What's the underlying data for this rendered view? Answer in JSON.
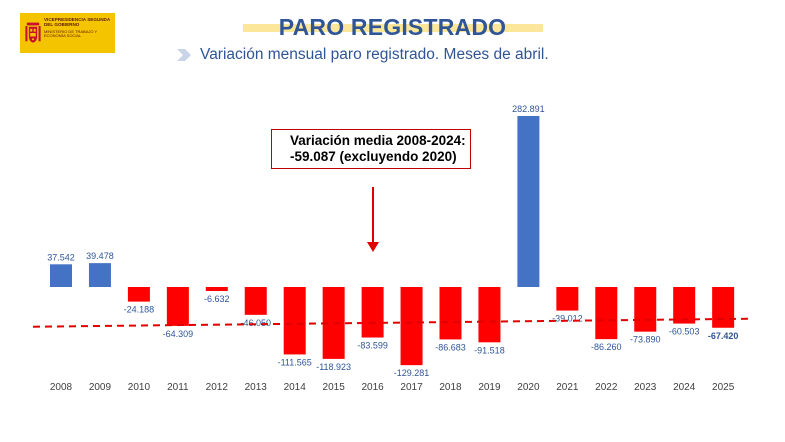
{
  "logo": {
    "line1": "VICEPRESIDENCIA SEGUNDA DEL GOBIERNO",
    "line2": "MINISTERIO DE TRABAJO Y ECONOMÍA SOCIAL"
  },
  "header": {
    "title": "PARO REGISTRADO",
    "subtitle": "Variación mensual paro registrado. Meses de abril."
  },
  "annotation": {
    "line1": "Variación media 2008-2024:",
    "line2": "-59.087 (excluyendo 2020)"
  },
  "colors": {
    "positive": "#4472c4",
    "negative": "#ff0000",
    "label": "#2f5597",
    "reference_line": "#e00000",
    "title": "#2f5597"
  },
  "chart_data": {
    "type": "bar",
    "title": "Variación mensual paro registrado. Meses de abril.",
    "xlabel": "",
    "ylabel": "",
    "grid": false,
    "ylim": [
      -130000,
      283000
    ],
    "categories": [
      "2008",
      "2009",
      "2010",
      "2011",
      "2012",
      "2013",
      "2014",
      "2015",
      "2016",
      "2017",
      "2018",
      "2019",
      "2020",
      "2021",
      "2022",
      "2023",
      "2024",
      "2025"
    ],
    "values": [
      37542,
      39478,
      -24188,
      -64309,
      -6632,
      -46050,
      -111565,
      -118923,
      -83599,
      -129281,
      -86683,
      -91518,
      282891,
      -39012,
      -86260,
      -73890,
      -60503,
      -67420
    ],
    "data_labels": [
      "37.542",
      "39.478",
      "-24.188",
      "-64.309",
      "-6.632",
      "-46.050",
      "-111.565",
      "-118.923",
      "-83.599",
      "-129.281",
      "-86.683",
      "-91.518",
      "282.891",
      "-39.012",
      "-86.260",
      "-73.890",
      "-60.503",
      "-67.420"
    ],
    "reference_line": {
      "label": "Variación media 2008-2024 (excluyendo 2020)",
      "value": -59087
    }
  }
}
